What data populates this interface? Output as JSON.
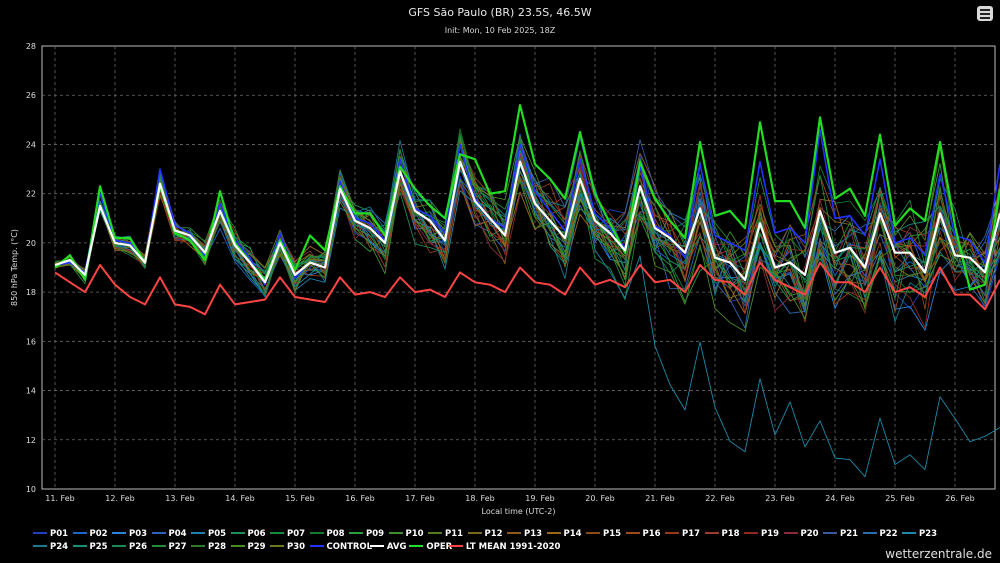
{
  "header": {
    "title": "GFS São Paulo (BR) 23.5S, 46.5W",
    "subtitle": "Init: Mon, 10 Feb 2025, 18Z"
  },
  "menu": {
    "icon": "hamburger-menu-icon"
  },
  "credit": "wetterzentrale.de",
  "colors": {
    "members": [
      "#1f3fbf",
      "#1c66c9",
      "#2b84d8",
      "#2f63b8",
      "#1f7fb0",
      "#1b8f57",
      "#168a3a",
      "#127a2e",
      "#2a9d3e",
      "#3c8f2a",
      "#587a1e",
      "#7a6a1a",
      "#8f5a1a",
      "#9a6a1a",
      "#8a4a18",
      "#a04a1c",
      "#9a3a1a",
      "#a03a2a",
      "#8f2a22",
      "#8a2a3a",
      "#3a5aa0",
      "#2c6fb0",
      "#1d88a8",
      "#187a92",
      "#16907a",
      "#1a8a52",
      "#238a3a",
      "#2e7a2a",
      "#4a8a26",
      "#6a7a1e"
    ],
    "control": "#2233ff",
    "avg": "#ffffff",
    "oper": "#22dd22",
    "ltmean": "#ff4444"
  },
  "chart_data": {
    "type": "line",
    "title": "GFS São Paulo (BR) 23.5S, 46.5W",
    "subtitle": "Init: Mon, 10 Feb 2025, 18Z",
    "xlabel": "Local time (UTC-2)",
    "ylabel": "850 hPa Temp. (°C)",
    "ylim": [
      10,
      28
    ],
    "yticks": [
      10,
      12,
      14,
      16,
      18,
      20,
      22,
      24,
      26,
      28
    ],
    "xticks": [
      "11. Feb",
      "12. Feb",
      "13. Feb",
      "14. Feb",
      "15. Feb",
      "16. Feb",
      "17. Feb",
      "18. Feb",
      "19. Feb",
      "20. Feb",
      "21. Feb",
      "22. Feb",
      "23. Feb",
      "24. Feb",
      "25. Feb",
      "26. Feb"
    ],
    "x_step_hours": 6,
    "grid": true,
    "legend_position": "bottom",
    "series": [
      {
        "name": "LT MEAN 1991-2020",
        "values": [
          18.8,
          18.4,
          18.0,
          19.1,
          18.3,
          17.8,
          17.5,
          18.6,
          17.5,
          17.4,
          17.1,
          18.3,
          17.5,
          17.6,
          17.7,
          18.6,
          17.8,
          17.7,
          17.6,
          18.6,
          17.9,
          18.0,
          17.8,
          18.6,
          18.0,
          18.1,
          17.8,
          18.8,
          18.4,
          18.3,
          18.0,
          19.0,
          18.4,
          18.3,
          17.9,
          19.0,
          18.3,
          18.5,
          18.2,
          19.1,
          18.4,
          18.5,
          18.0,
          19.1,
          18.5,
          18.4,
          17.9,
          19.2,
          18.5,
          18.2,
          17.9,
          19.2,
          18.4,
          18.4,
          18.0,
          19.0,
          18.0,
          18.2,
          17.8,
          19.0,
          17.9,
          17.9,
          17.3,
          18.5
        ]
      },
      {
        "name": "AVG",
        "values": [
          19.1,
          19.3,
          18.7,
          21.5,
          20.0,
          19.9,
          19.2,
          22.4,
          20.5,
          20.3,
          19.6,
          21.3,
          19.9,
          19.2,
          18.4,
          20.0,
          18.7,
          19.2,
          19.0,
          22.2,
          20.9,
          20.6,
          20.0,
          22.9,
          21.3,
          20.9,
          20.1,
          23.3,
          21.7,
          21.0,
          20.3,
          23.3,
          21.6,
          20.9,
          20.2,
          22.6,
          20.9,
          20.4,
          19.7,
          22.3,
          20.6,
          20.2,
          19.6,
          21.4,
          19.4,
          19.2,
          18.5,
          20.8,
          19.0,
          19.2,
          18.7,
          21.3,
          19.6,
          19.8,
          19.0,
          21.2,
          19.6,
          19.6,
          18.8,
          21.2,
          19.5,
          19.4,
          18.8,
          21.2
        ]
      },
      {
        "name": "OPER",
        "values": [
          19.0,
          19.5,
          18.5,
          22.3,
          20.2,
          20.2,
          19.2,
          22.3,
          20.4,
          20.1,
          19.3,
          22.1,
          20.0,
          19.2,
          18.5,
          20.1,
          18.9,
          20.3,
          19.7,
          22.3,
          21.2,
          21.2,
          20.3,
          23.1,
          22.2,
          21.5,
          21.0,
          23.6,
          23.4,
          22.0,
          22.1,
          25.6,
          23.2,
          22.6,
          21.8,
          24.5,
          22.0,
          20.8,
          19.6,
          23.3,
          21.8,
          20.9,
          20.2,
          24.1,
          21.1,
          21.3,
          20.6,
          24.9,
          21.7,
          21.7,
          20.6,
          25.1,
          21.8,
          22.2,
          21.1,
          24.4,
          20.7,
          21.4,
          20.9,
          24.1,
          20.7,
          18.1,
          18.3,
          22.2
        ]
      },
      {
        "name": "CONTROL",
        "values": [
          19.1,
          19.2,
          18.8,
          22.0,
          20.1,
          20.0,
          19.2,
          23.0,
          20.7,
          20.4,
          19.5,
          21.6,
          20.1,
          19.4,
          18.3,
          20.4,
          18.6,
          19.2,
          19.0,
          22.5,
          21.0,
          20.8,
          20.1,
          23.4,
          21.4,
          21.1,
          20.4,
          24.0,
          21.8,
          21.0,
          20.6,
          24.0,
          22.1,
          21.3,
          20.5,
          23.4,
          21.2,
          20.6,
          19.8,
          23.1,
          20.7,
          20.3,
          19.4,
          23.2,
          20.3,
          20.0,
          19.7,
          23.3,
          20.4,
          20.6,
          20.0,
          24.6,
          21.0,
          21.1,
          20.3,
          23.4,
          20.0,
          20.2,
          19.5,
          22.8,
          20.3,
          20.1,
          19.2,
          23.2
        ]
      },
      {
        "name": "P01"
      },
      {
        "name": "P02"
      },
      {
        "name": "P03"
      },
      {
        "name": "P04"
      },
      {
        "name": "P05"
      },
      {
        "name": "P06"
      },
      {
        "name": "P07"
      },
      {
        "name": "P08"
      },
      {
        "name": "P09"
      },
      {
        "name": "P10"
      },
      {
        "name": "P11"
      },
      {
        "name": "P12"
      },
      {
        "name": "P13"
      },
      {
        "name": "P14"
      },
      {
        "name": "P15"
      },
      {
        "name": "P16"
      },
      {
        "name": "P17"
      },
      {
        "name": "P18"
      },
      {
        "name": "P19"
      },
      {
        "name": "P20"
      },
      {
        "name": "P21"
      },
      {
        "name": "P22"
      },
      {
        "name": "P23"
      },
      {
        "name": "P24"
      },
      {
        "name": "P25"
      },
      {
        "name": "P26"
      },
      {
        "name": "P27"
      },
      {
        "name": "P28"
      },
      {
        "name": "P29"
      },
      {
        "name": "P30"
      }
    ]
  },
  "legend": {
    "row1": [
      "P01",
      "P02",
      "P03",
      "P04",
      "P05",
      "P06",
      "P07",
      "P08",
      "P09",
      "P10",
      "P11",
      "P12",
      "P13",
      "P14",
      "P15",
      "P16",
      "P17",
      "P18",
      "P19",
      "P20",
      "P21",
      "P22",
      "P23"
    ],
    "row2": [
      "P24",
      "P25",
      "P26",
      "P27",
      "P28",
      "P29",
      "P30",
      "CONTROL",
      "AVG",
      "OPER",
      "LT MEAN 1991-2020"
    ]
  }
}
